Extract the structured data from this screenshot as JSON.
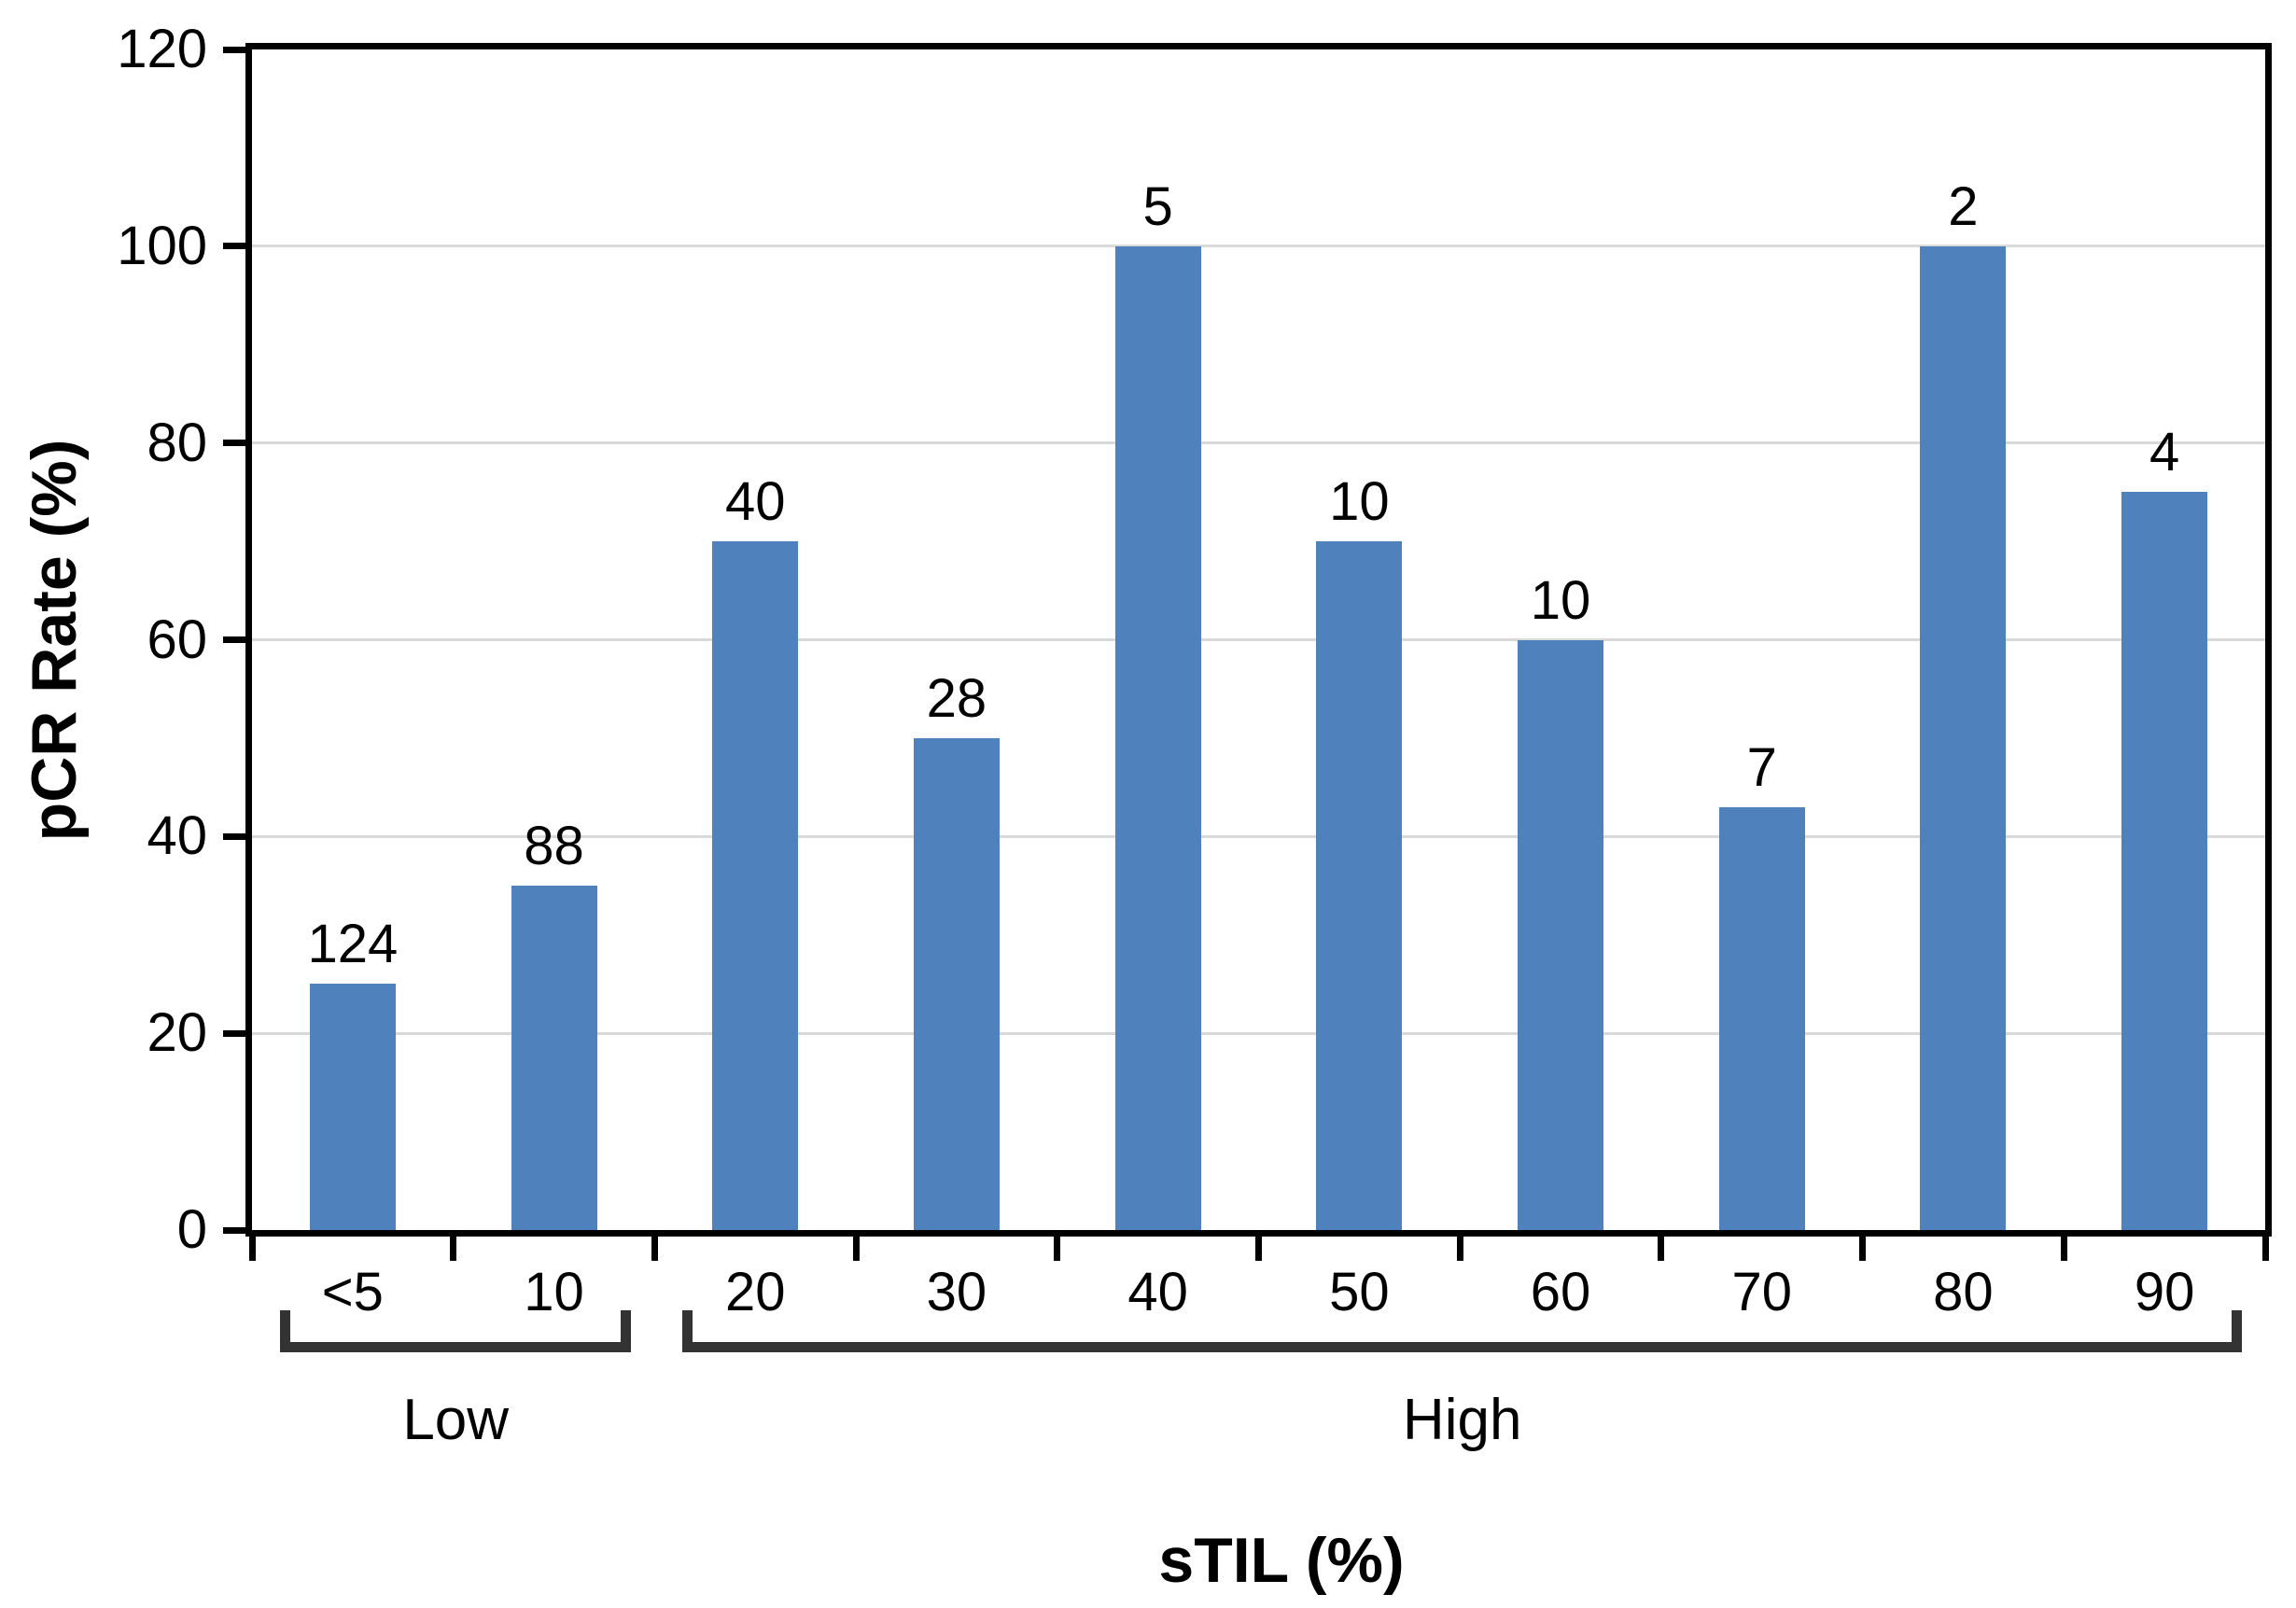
{
  "chart_data": {
    "type": "bar",
    "title": "",
    "xlabel": "sTIL (%)",
    "ylabel": "pCR Rate (%)",
    "categories": [
      "<5",
      "10",
      "20",
      "30",
      "40",
      "50",
      "60",
      "70",
      "80",
      "90"
    ],
    "values": [
      25,
      35,
      70,
      50,
      100,
      70,
      60,
      43,
      100,
      75
    ],
    "bar_labels": [
      "124",
      "88",
      "40",
      "28",
      "5",
      "10",
      "10",
      "7",
      "2",
      "4"
    ],
    "groups": [
      {
        "label": "Low",
        "from": 0,
        "to": 1
      },
      {
        "label": "High",
        "from": 2,
        "to": 9
      }
    ],
    "ylim": [
      0,
      120
    ],
    "ytick_step": 20,
    "grid": true,
    "legend_position": "none",
    "colors": {
      "bar": "#4f81bd",
      "grid": "#d9d9d9",
      "axis": "#000000",
      "bracket": "#333333",
      "text": "#000000"
    }
  }
}
